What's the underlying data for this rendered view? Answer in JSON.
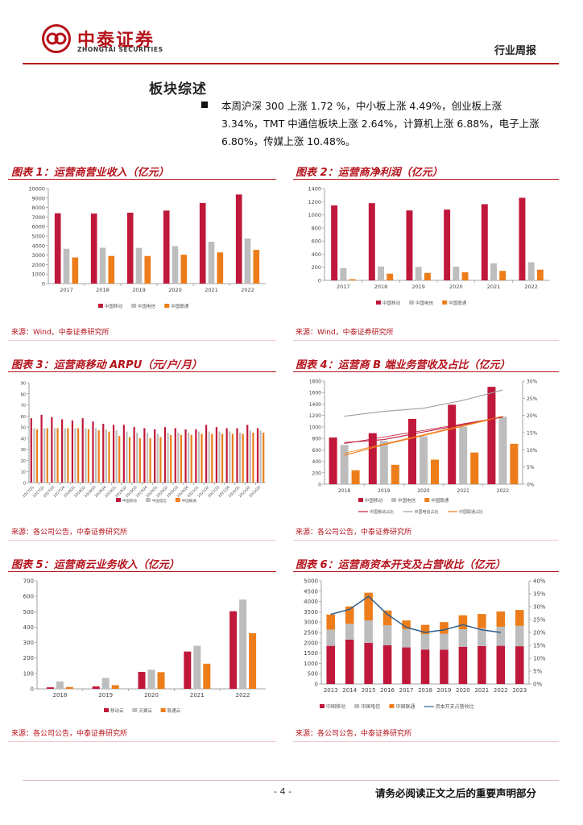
{
  "header": {
    "logo_cn": "中泰证券",
    "logo_en": "ZHONGTAI SECURITIES",
    "report_type": "行业周报"
  },
  "section_title": "板块综述",
  "summary": "本周沪深 300 上涨 1.72 %，中小板上涨 4.49%，创业板上涨 3.34%，TMT 中通信板块上涨 2.64%，计算机上涨 6.88%，电子上涨 6.80%，传媒上涨 10.48%。",
  "colors": {
    "mobile": "#c0183a",
    "telecom": "#bdbdbd",
    "unicom": "#ed7d1a",
    "brand": "#b5121b",
    "line_gray": "#9e9e9e",
    "line_blue": "#2e5e8e"
  },
  "figures": [
    {
      "title": "图表 1：运营商营业收入（亿元）",
      "source": "来源：Wind，中泰证券研究所"
    },
    {
      "title": "图表 2：运营商净利润（亿元）",
      "source": "来源：Wind，中泰证券研究所"
    },
    {
      "title": "图表 3：运营商移动 ARPU（元/户/月）",
      "source": "来源：各公司公告，中泰证券研究所"
    },
    {
      "title": "图表 4：运营商 B 端业务营收及占比（亿元）",
      "source": "来源：各公司公告，中泰证券研究所"
    },
    {
      "title": "图表 5：运营商云业务收入（亿元）",
      "source": "来源：各公司公告，中泰证券研究所"
    },
    {
      "title": "图表 6：运营商资本开支及占营收比（亿元）",
      "source": "来源：各公司公告，中泰证券研究所"
    }
  ],
  "chart_data": [
    {
      "type": "bar",
      "categories": [
        "2017",
        "2018",
        "2019",
        "2020",
        "2021",
        "2022"
      ],
      "ylim": [
        0,
        10000
      ],
      "yticks": [
        "0",
        "1000",
        "2000",
        "3000",
        "4000",
        "5000",
        "6000",
        "7000",
        "8000",
        "9000",
        "10000"
      ],
      "series": [
        {
          "name": "中国移动",
          "values": [
            7400,
            7368,
            7459,
            7681,
            8483,
            9373
          ]
        },
        {
          "name": "中国电信",
          "values": [
            3662,
            3771,
            3757,
            3934,
            4396,
            4750
          ]
        },
        {
          "name": "中国联通",
          "values": [
            2749,
            2908,
            2905,
            3039,
            3279,
            3549
          ]
        }
      ]
    },
    {
      "type": "bar",
      "categories": [
        "2017",
        "2018",
        "2019",
        "2020",
        "2021",
        "2022"
      ],
      "ylim": [
        0,
        1400
      ],
      "yticks": [
        "0",
        "200",
        "400",
        "600",
        "800",
        "1000",
        "1200",
        "1400"
      ],
      "series": [
        {
          "name": "中国移动",
          "values": [
            1143,
            1177,
            1066,
            1079,
            1161,
            1259
          ]
        },
        {
          "name": "中国电信",
          "values": [
            186,
            212,
            205,
            209,
            260,
            276
          ]
        },
        {
          "name": "中国联通",
          "values": [
            18,
            102,
            114,
            125,
            145,
            163
          ]
        }
      ]
    },
    {
      "type": "bar",
      "categories": [
        "2017Q1",
        "2017Q2",
        "2017Q3",
        "2017Q4",
        "2018Q1",
        "2018Q2",
        "2018Q3",
        "2018Q4",
        "2019Q1",
        "2019Q2",
        "2019Q3",
        "2019Q4",
        "2020Q1",
        "2020Q2",
        "2020Q3",
        "2020Q4",
        "2021Q1",
        "2021Q2",
        "2021Q3",
        "2021Q4",
        "2022Q1",
        "2022Q2",
        "2022Q3"
      ],
      "ylim": [
        0,
        90
      ],
      "yticks": [
        "0",
        "10",
        "20",
        "30",
        "40",
        "50",
        "60",
        "70",
        "80",
        "90"
      ],
      "series": [
        {
          "name": "中国移动",
          "values": [
            58,
            61,
            59,
            57,
            56,
            58,
            55,
            53,
            52,
            52,
            50,
            49,
            48,
            50,
            49,
            48,
            48,
            52,
            50,
            49,
            49,
            52,
            49
          ]
        },
        {
          "name": "中国电信",
          "values": [
            49,
            49,
            49,
            49,
            49,
            49,
            49,
            48,
            47,
            46,
            45,
            45,
            44,
            45,
            45,
            45,
            46,
            46,
            46,
            46,
            45,
            47,
            47
          ]
        },
        {
          "name": "中国联通",
          "values": [
            48,
            49,
            49,
            49,
            49,
            48,
            47,
            46,
            42,
            41,
            40,
            40,
            41,
            43,
            43,
            43,
            44,
            44,
            44,
            44,
            44,
            45,
            45
          ]
        }
      ]
    },
    {
      "type": "bar",
      "categories": [
        "2018",
        "2019",
        "2020",
        "2021",
        "2022"
      ],
      "ylim": [
        0,
        1800
      ],
      "yticks": [
        "0",
        "200",
        "400",
        "600",
        "800",
        "1000",
        "1200",
        "1400",
        "1600",
        "1800"
      ],
      "y2lim": [
        0,
        0.3
      ],
      "y2ticks": [
        "0%",
        "5%",
        "10%",
        "15%",
        "20%",
        "25%",
        "30%"
      ],
      "series": [
        {
          "name": "中国移动",
          "values": [
            815,
            891,
            1140,
            1387,
            1700
          ]
        },
        {
          "name": "中国电信",
          "values": [
            685,
            756,
            836,
            1004,
            1178
          ]
        },
        {
          "name": "中国联通",
          "values": [
            244,
            339,
            429,
            553,
            705
          ]
        },
        {
          "name": "中国移动占比",
          "type": "line",
          "values": [
            0.121,
            0.13,
            0.152,
            0.173,
            0.196
          ]
        },
        {
          "name": "中国电信占比",
          "type": "line",
          "values": [
            0.198,
            0.212,
            0.221,
            0.244,
            0.274
          ]
        },
        {
          "name": "中国联通占比",
          "type": "line",
          "values": [
            0.084,
            0.115,
            0.142,
            0.169,
            0.197
          ]
        }
      ]
    },
    {
      "type": "bar",
      "categories": [
        "2018",
        "2019",
        "2020",
        "2021",
        "2022"
      ],
      "ylim": [
        0,
        700
      ],
      "yticks": [
        "0",
        "100",
        "200",
        "300",
        "400",
        "500",
        "600",
        "700"
      ],
      "series": [
        {
          "name": "移动云",
          "values": [
            10,
            16,
            110,
            242,
            503
          ]
        },
        {
          "name": "天翼云",
          "values": [
            48,
            71,
            124,
            279,
            579
          ]
        },
        {
          "name": "联通云",
          "values": [
            12,
            24,
            108,
            163,
            361
          ]
        }
      ]
    },
    {
      "type": "bar",
      "categories": [
        "2013",
        "2014",
        "2015",
        "2016",
        "2017",
        "2018",
        "2019",
        "2020",
        "2021",
        "2022",
        "2023"
      ],
      "ylim": [
        0,
        5000
      ],
      "yticks": [
        "0",
        "500",
        "1000",
        "1500",
        "2000",
        "2500",
        "3000",
        "3500",
        "4000",
        "4500",
        "5000"
      ],
      "y2lim": [
        0,
        0.4
      ],
      "y2ticks": [
        "0%",
        "5%",
        "10%",
        "15%",
        "20%",
        "25%",
        "30%",
        "35%",
        "40%"
      ],
      "stacked": true,
      "series": [
        {
          "name": "中国移动",
          "values": [
            1850,
            2150,
            1995,
            1875,
            1775,
            1670,
            1660,
            1806,
            1836,
            1852,
            1832
          ]
        },
        {
          "name": "中国电信",
          "values": [
            790,
            770,
            1092,
            968,
            887,
            749,
            776,
            848,
            867,
            925,
            988
          ]
        },
        {
          "name": "中国联通",
          "values": [
            730,
            840,
            1339,
            721,
            421,
            449,
            564,
            678,
            690,
            742,
            769
          ]
        },
        {
          "name": "资本开支占营收比",
          "type": "line",
          "values": [
            0.27,
            0.29,
            0.34,
            0.27,
            0.22,
            0.2,
            0.21,
            0.23,
            0.21,
            0.2,
            null
          ]
        }
      ]
    }
  ],
  "legend_labels": {
    "mobile": "中国移动",
    "telecom": "中国电信",
    "unicom": "中国联通",
    "mobile_ratio": "中国移动占比",
    "telecom_ratio": "中国电信占比",
    "unicom_ratio": "中国联通占比",
    "mobile_cloud": "移动云",
    "telecom_cloud": "天翼云",
    "unicom_cloud": "联通云",
    "capex_ratio": "资本开支占营收比"
  },
  "footer": {
    "page_number": "- 4 -",
    "disclaimer": "请务必阅读正文之后的重要声明部分"
  }
}
